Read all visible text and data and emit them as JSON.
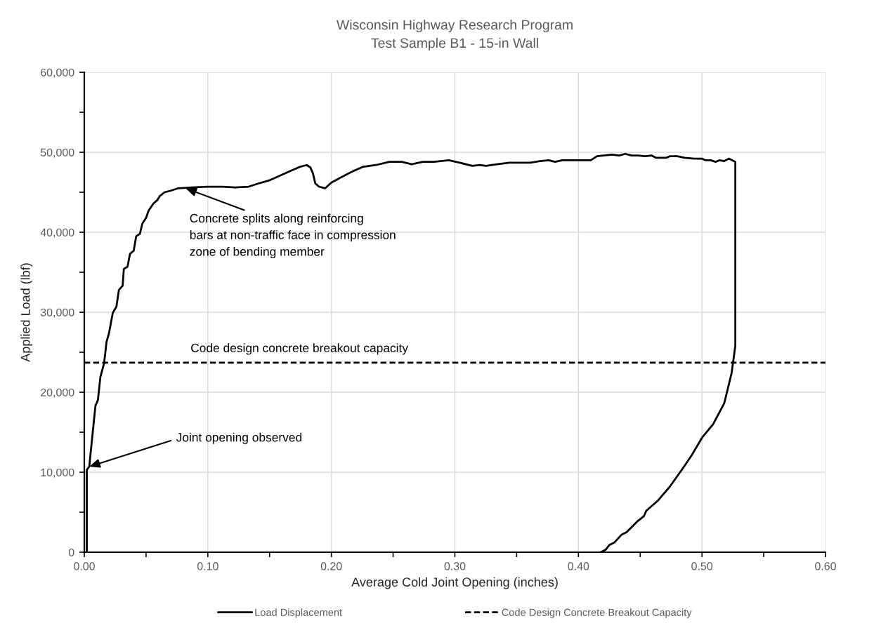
{
  "chart_data": {
    "type": "line",
    "title": "Wisconsin Highway Research Program",
    "subtitle": "Test Sample B1 - 15-in Wall",
    "xlabel": "Average Cold Joint Opening (inches)",
    "ylabel": "Applied Load (lbf)",
    "series": [
      {
        "name": "Load Displacement",
        "color": "#000000",
        "line_style": "solid",
        "x": [
          0.002,
          0.002,
          0.004,
          0.009,
          0.011,
          0.013,
          0.016,
          0.018,
          0.02,
          0.023,
          0.026,
          0.028,
          0.031,
          0.032,
          0.035,
          0.037,
          0.04,
          0.042,
          0.045,
          0.047,
          0.05,
          0.052,
          0.056,
          0.059,
          0.061,
          0.065,
          0.07,
          0.076,
          0.087,
          0.1,
          0.112,
          0.122,
          0.133,
          0.141,
          0.15,
          0.16,
          0.169,
          0.175,
          0.18,
          0.183,
          0.185,
          0.187,
          0.19,
          0.195,
          0.2,
          0.207,
          0.217,
          0.226,
          0.236,
          0.247,
          0.257,
          0.265,
          0.274,
          0.283,
          0.295,
          0.304,
          0.314,
          0.32,
          0.325,
          0.334,
          0.344,
          0.353,
          0.361,
          0.369,
          0.376,
          0.381,
          0.387,
          0.405,
          0.41,
          0.415,
          0.427,
          0.433,
          0.438,
          0.443,
          0.448,
          0.454,
          0.459,
          0.463,
          0.471,
          0.474,
          0.48,
          0.486,
          0.494,
          0.5,
          0.503,
          0.507,
          0.511,
          0.514,
          0.518,
          0.522,
          0.527,
          0.527,
          0.524,
          0.518,
          0.509,
          0.5,
          0.492,
          0.485,
          0.474,
          0.464,
          0.455,
          0.453,
          0.448,
          0.439,
          0.435,
          0.429,
          0.425,
          0.422,
          0.418
        ],
        "values": [
          0,
          10300,
          10700,
          18300,
          19000,
          21900,
          23600,
          26300,
          27400,
          29900,
          30700,
          32800,
          33300,
          35400,
          35700,
          37300,
          37700,
          39500,
          39800,
          41100,
          41800,
          42700,
          43600,
          44000,
          44500,
          45000,
          45200,
          45500,
          45600,
          45700,
          45700,
          45600,
          45700,
          46100,
          46500,
          47200,
          47800,
          48200,
          48400,
          48100,
          47400,
          46100,
          45700,
          45500,
          46200,
          46800,
          47600,
          48200,
          48400,
          48800,
          48800,
          48500,
          48800,
          48800,
          49000,
          48700,
          48300,
          48400,
          48300,
          48500,
          48700,
          48700,
          48700,
          48900,
          49000,
          48800,
          49000,
          49000,
          49000,
          49500,
          49700,
          49600,
          49800,
          49600,
          49600,
          49500,
          49600,
          49300,
          49300,
          49500,
          49500,
          49300,
          49200,
          49200,
          49000,
          49000,
          48800,
          49000,
          48900,
          49200,
          48800,
          25800,
          22400,
          18600,
          16000,
          14300,
          12200,
          10600,
          8200,
          6400,
          5200,
          4500,
          3900,
          2500,
          2200,
          1200,
          900,
          300,
          0
        ]
      },
      {
        "name": "Code Design Concrete Breakout Capacity",
        "color": "#000000",
        "line_style": "dashed",
        "x": [
          0,
          0.6
        ],
        "values": [
          23700,
          23700
        ]
      }
    ],
    "xlim": [
      0,
      0.6
    ],
    "ylim": [
      0,
      60000
    ],
    "xticks": [
      {
        "value": 0,
        "label": "0.00"
      },
      {
        "value": 0.05,
        "label": null
      },
      {
        "value": 0.1,
        "label": "0.10"
      },
      {
        "value": 0.15,
        "label": null
      },
      {
        "value": 0.2,
        "label": "0.20"
      },
      {
        "value": 0.25,
        "label": null
      },
      {
        "value": 0.3,
        "label": "0.30"
      },
      {
        "value": 0.35,
        "label": null
      },
      {
        "value": 0.4,
        "label": "0.40"
      },
      {
        "value": 0.45,
        "label": null
      },
      {
        "value": 0.5,
        "label": "0.50"
      },
      {
        "value": 0.55,
        "label": null
      },
      {
        "value": 0.6,
        "label": "0.60"
      }
    ],
    "yticks": [
      0,
      {
        "value": 5000,
        "label": null
      },
      {
        "value": 10000,
        "label": "10,000"
      },
      {
        "value": 15000,
        "label": null
      },
      {
        "value": 20000,
        "label": "20,000"
      },
      {
        "value": 25000,
        "label": null
      },
      {
        "value": 30000,
        "label": "30,000"
      },
      {
        "value": 35000,
        "label": null
      },
      {
        "value": 40000,
        "label": "40,000"
      },
      {
        "value": 45000,
        "label": null
      },
      {
        "value": 50000,
        "label": "50,000"
      },
      {
        "value": 55000,
        "label": null
      },
      {
        "value": 60000,
        "label": "60,000"
      }
    ],
    "grid": true,
    "legend": "bottom",
    "annotations": [
      {
        "text": "Joint opening observed",
        "x": 0.004,
        "y": 10700
      },
      {
        "text": "Concrete splits along reinforcing\nbars at non-traffic face in compression\nzone of bending member",
        "x": 0.082,
        "y": 45500
      },
      {
        "text": "Code design concrete breakout capacity",
        "x": 0.086,
        "y": 23700
      }
    ]
  }
}
